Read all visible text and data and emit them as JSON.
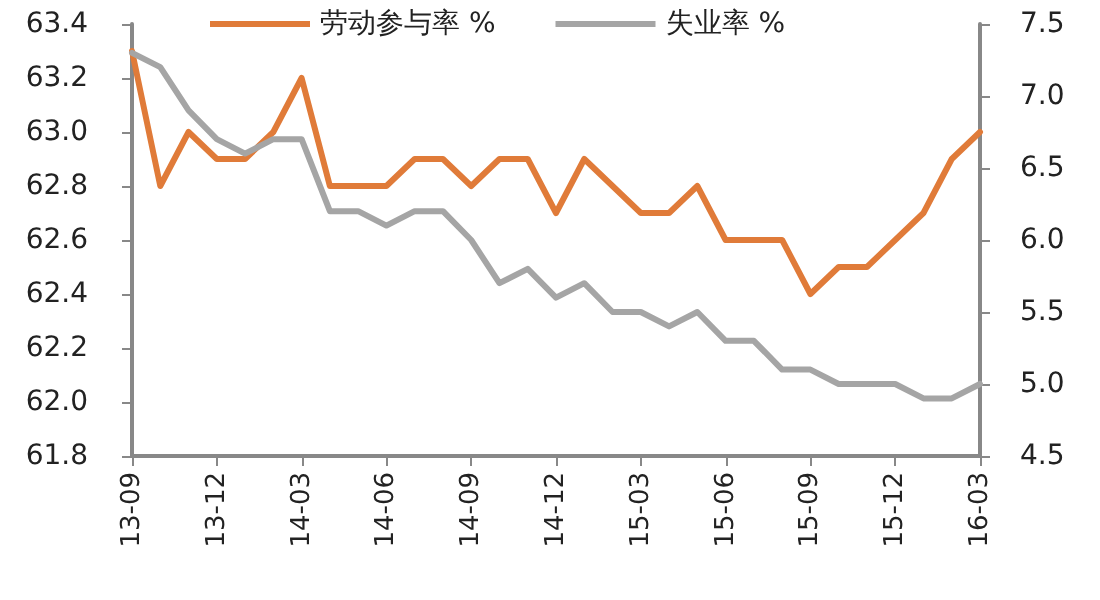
{
  "chart_data": {
    "type": "line",
    "categories": [
      "13-09",
      null,
      null,
      "13-12",
      null,
      null,
      "14-03",
      null,
      null,
      "14-06",
      null,
      null,
      "14-09",
      null,
      null,
      "14-12",
      null,
      null,
      "15-03",
      null,
      null,
      "15-06",
      null,
      null,
      "15-09",
      null,
      null,
      "15-12",
      null,
      null,
      "16-03"
    ],
    "series": [
      {
        "name": "劳动参与率 %",
        "color": "#e07b39",
        "values": [
          63.3,
          62.8,
          63.0,
          62.9,
          62.9,
          63.0,
          63.2,
          62.8,
          62.8,
          62.8,
          62.9,
          62.9,
          62.8,
          62.9,
          62.9,
          62.7,
          62.9,
          62.8,
          62.7,
          62.7,
          62.8,
          62.6,
          62.6,
          62.6,
          62.4,
          62.5,
          62.5,
          62.6,
          62.7,
          62.9,
          63.0
        ]
      },
      {
        "name": "失业率 %",
        "color": "#a5a5a5",
        "axis": "y2",
        "values": [
          7.3,
          7.2,
          6.9,
          6.7,
          6.6,
          6.7,
          6.7,
          6.2,
          6.2,
          6.1,
          6.2,
          6.2,
          6.0,
          5.7,
          5.8,
          5.6,
          5.7,
          5.5,
          5.5,
          5.4,
          5.5,
          5.3,
          5.3,
          5.1,
          5.1,
          5.0,
          5.0,
          5.0,
          4.9,
          4.9,
          5.0
        ]
      }
    ],
    "ylim": [
      61.8,
      63.4
    ],
    "yticks": [
      61.8,
      {
        "value": 62,
        "label": "62.0"
      },
      62.2,
      62.4,
      62.6,
      62.8,
      {
        "value": 63,
        "label": "63.0"
      },
      63.2,
      63.4
    ],
    "y2lim": [
      4.5,
      7.5
    ],
    "y2ticks": [
      4.5,
      {
        "value": 5,
        "label": "5.0"
      },
      5.5,
      {
        "value": 6,
        "label": "6.0"
      },
      6.5,
      {
        "value": 7,
        "label": "7.0"
      },
      7.5
    ],
    "grid": false,
    "legend": "top",
    "marker": "none",
    "line_style": "solid"
  }
}
